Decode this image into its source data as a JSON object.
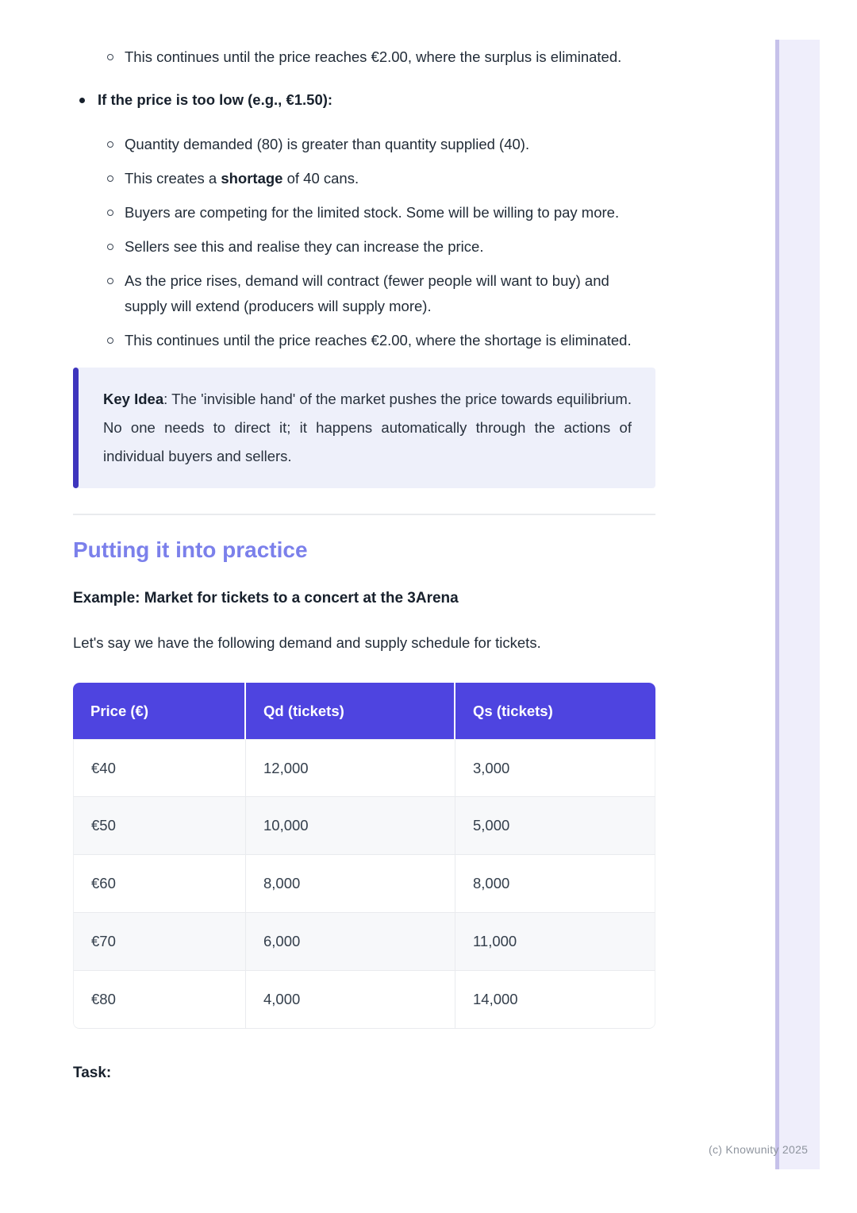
{
  "colors": {
    "accent": "#4e44e0",
    "section_heading": "#7b80eb",
    "callout_background": "#eef0fa",
    "callout_bar": "#3e35bd",
    "page_edge_strip": "#efeefb",
    "watermark_text": "#8e949e"
  },
  "surplus_item": {
    "text": "This continues until the price reaches €2.00, where the surplus is eliminated."
  },
  "low_price": {
    "title": "If the price is too low (e.g., €1.50):",
    "items": [
      {
        "text": "Quantity demanded (80) is greater than quantity supplied (40)."
      },
      {
        "pre": "This creates a ",
        "bold": "shortage",
        "post": " of 40 cans."
      },
      {
        "text": "Buyers are competing for the limited stock. Some will be willing to pay more."
      },
      {
        "text": "Sellers see this and realise they can increase the price."
      },
      {
        "text": "As the price rises, demand will contract (fewer people will want to buy) and supply will extend (producers will supply more)."
      },
      {
        "text": "This continues until the price reaches €2.00, where the shortage is eliminated."
      }
    ]
  },
  "callout": {
    "label": "Key Idea",
    "text": ": The 'invisible hand' of the market pushes the price towards equilibrium. No one needs to direct it; it happens automatically through the actions of individual buyers and sellers."
  },
  "practice": {
    "heading": "Putting it into practice",
    "example_title": "Example: Market for tickets to a concert at the 3Arena",
    "intro": "Let's say we have the following demand and supply schedule for tickets.",
    "table": {
      "headers": [
        "Price (€)",
        "Qd (tickets)",
        "Qs (tickets)"
      ],
      "rows": [
        [
          "€40",
          "12,000",
          "3,000"
        ],
        [
          "€50",
          "10,000",
          "5,000"
        ],
        [
          "€60",
          "8,000",
          "8,000"
        ],
        [
          "€70",
          "6,000",
          "11,000"
        ],
        [
          "€80",
          "4,000",
          "14,000"
        ]
      ]
    },
    "task_label": "Task:"
  },
  "footer": {
    "watermark": "(c) Knowunity 2025"
  }
}
